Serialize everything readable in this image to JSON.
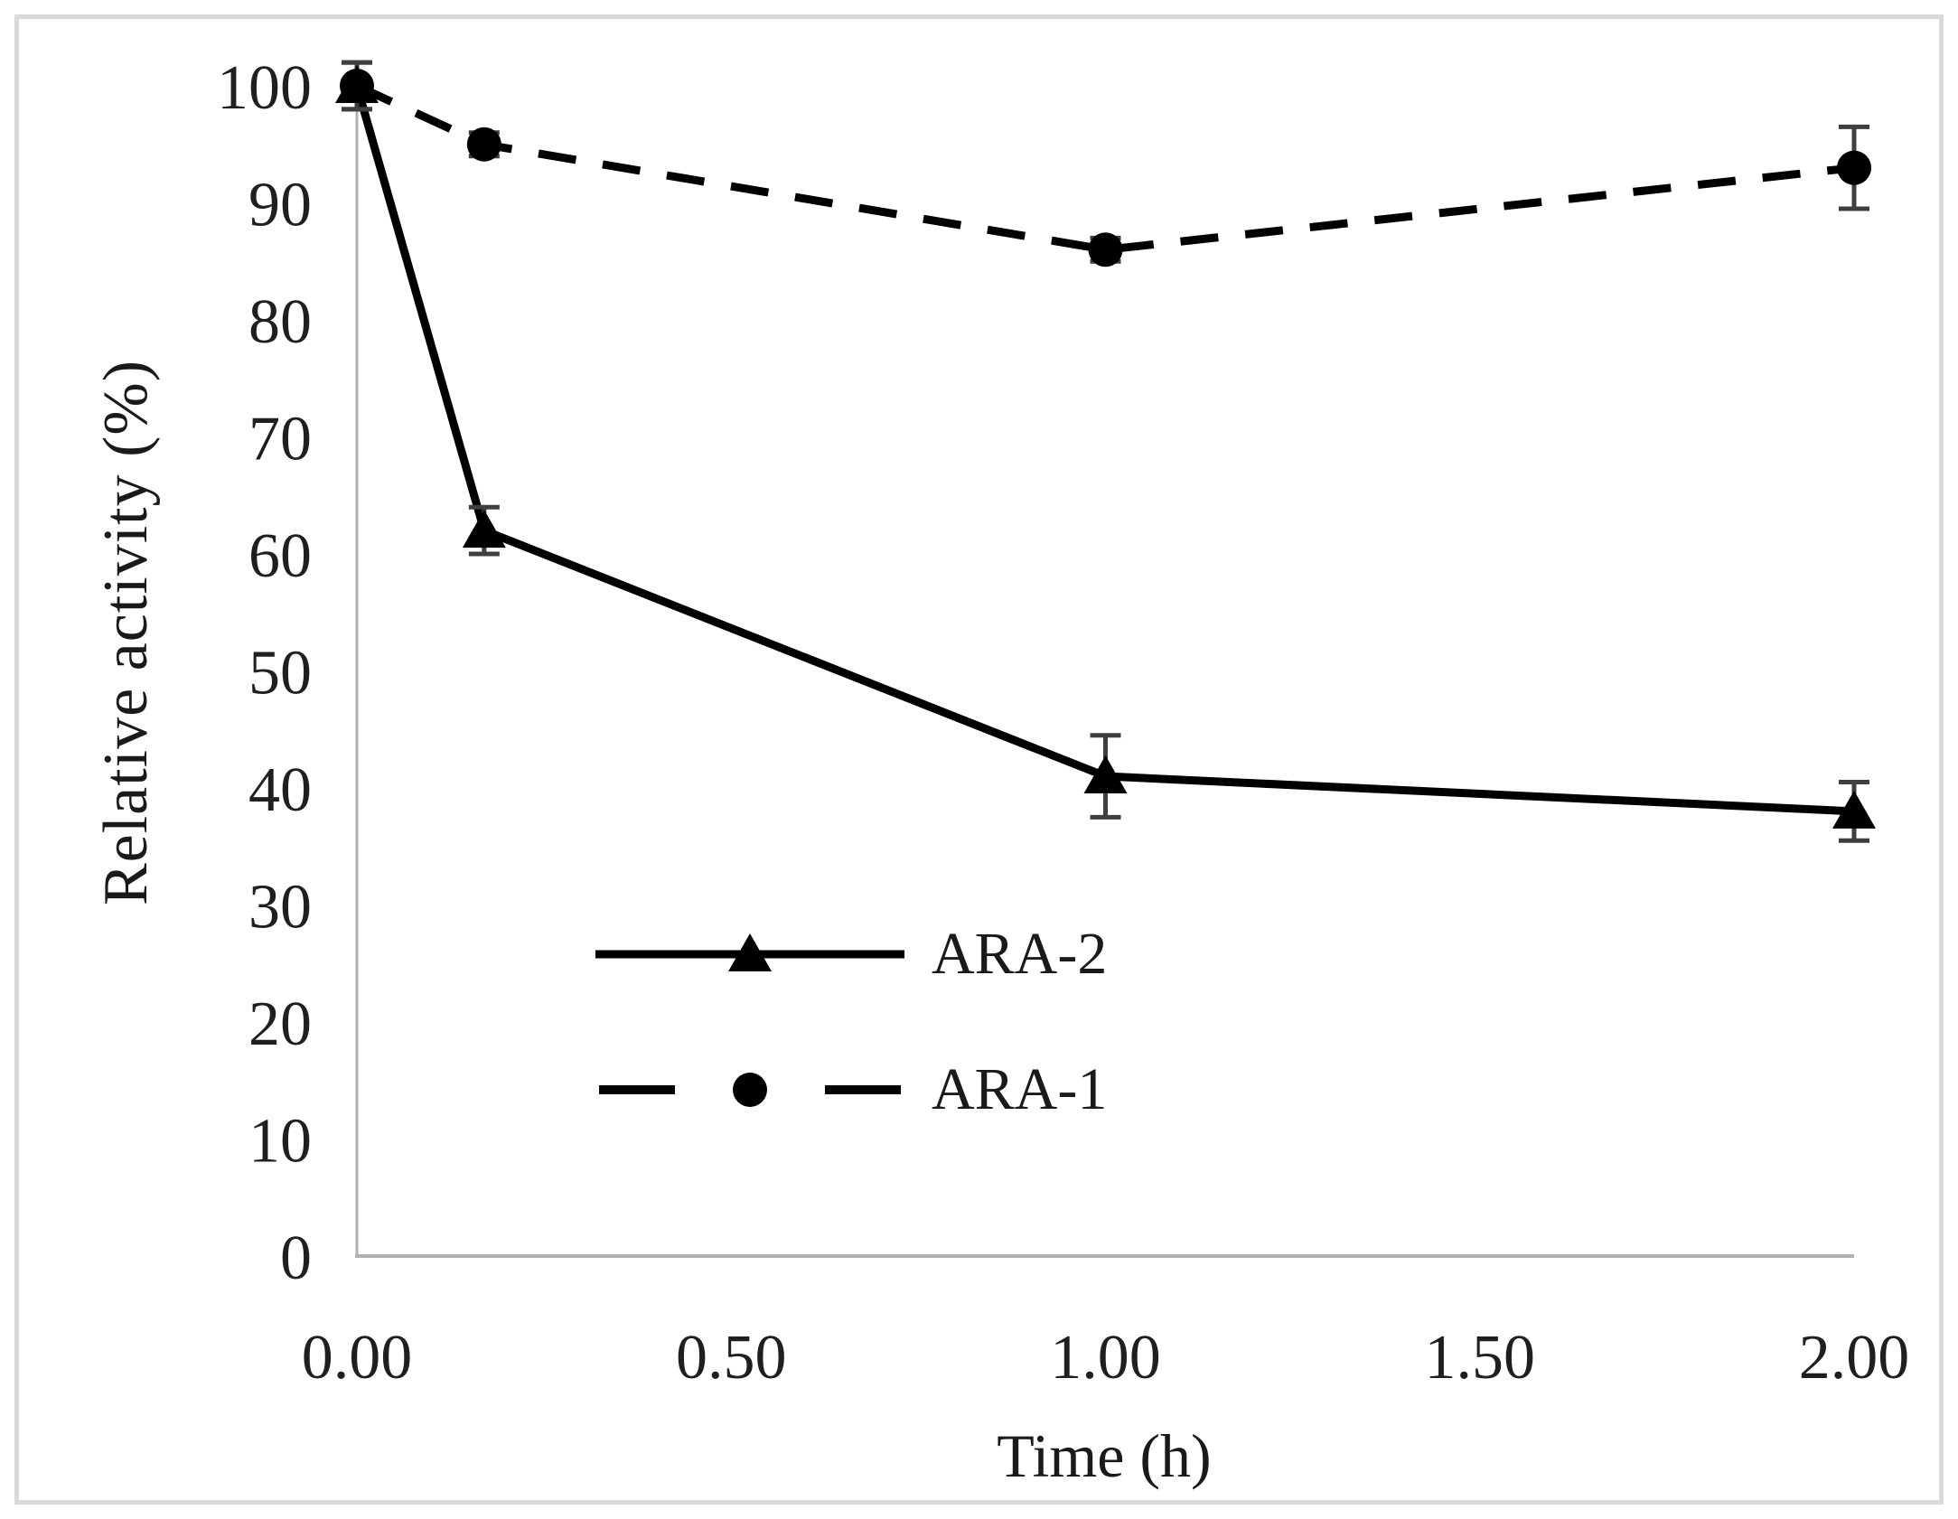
{
  "figure": {
    "background": "#ffffff",
    "border_color": "#d9d9d9"
  },
  "chart_data": {
    "type": "line",
    "title": "",
    "xlabel": "Time (h)",
    "ylabel": "Relative activity (%)",
    "xlim": [
      0,
      2
    ],
    "ylim": [
      0,
      100
    ],
    "grid": false,
    "legend_position": "inside-lower-left",
    "x_tick_labels": [
      "0.00",
      "0.50",
      "1.00",
      "1.50",
      "2.00"
    ],
    "x_tick_values": [
      0,
      0.5,
      1,
      1.5,
      2
    ],
    "y_tick_labels": [
      "0",
      "10",
      "20",
      "30",
      "40",
      "50",
      "60",
      "70",
      "80",
      "90",
      "100"
    ],
    "y_tick_values": [
      0,
      10,
      20,
      30,
      40,
      50,
      60,
      70,
      80,
      90,
      100
    ],
    "axis_line_color": "#b0b0b0",
    "error_bar_color": "#3f3f3f",
    "series": [
      {
        "name": "ARA-2",
        "line_style": "solid",
        "marker": "triangle",
        "color": "#000000",
        "x": [
          0,
          0.17,
          1,
          2
        ],
        "values": [
          100,
          62,
          41,
          38
        ],
        "error": [
          2,
          2,
          3.5,
          2.5
        ]
      },
      {
        "name": "ARA-1",
        "line_style": "dashed",
        "marker": "circle",
        "color": "#000000",
        "x": [
          0,
          0.17,
          1,
          2
        ],
        "values": [
          100,
          95,
          86,
          93
        ],
        "error": [
          2,
          1,
          1,
          3.5
        ]
      }
    ]
  }
}
